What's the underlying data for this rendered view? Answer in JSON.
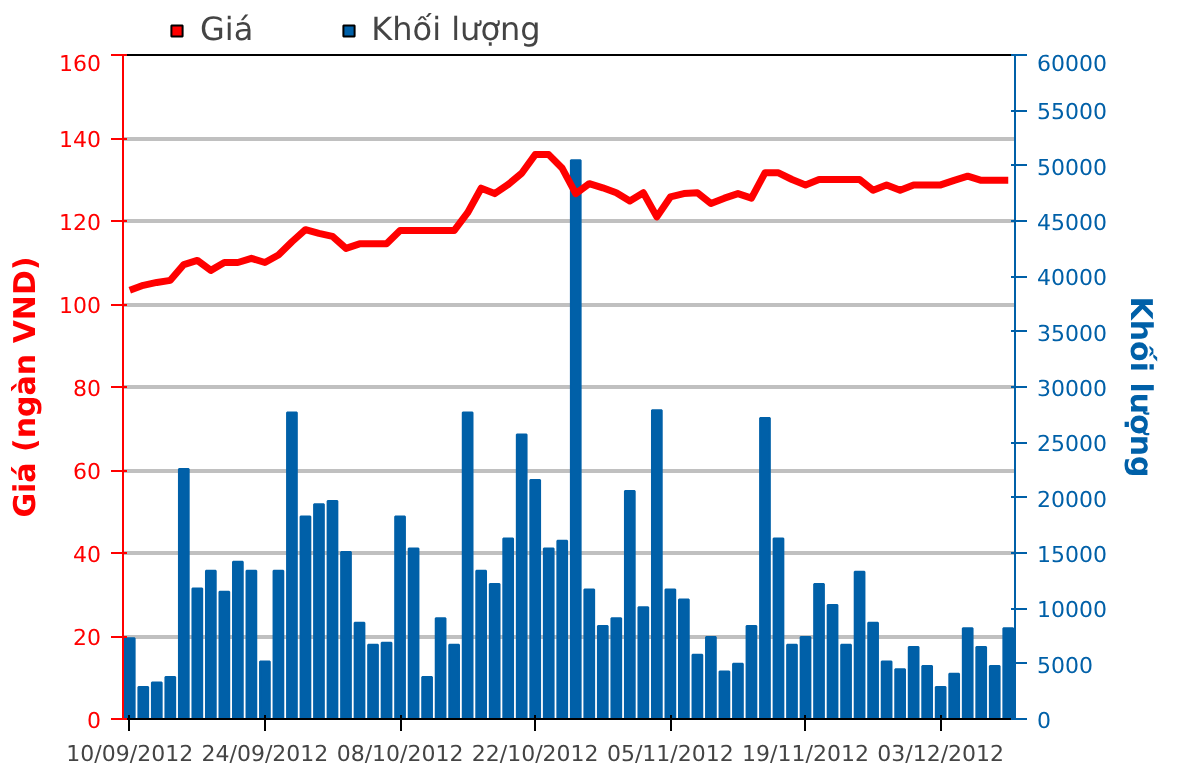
{
  "chart_data": {
    "type": "bar",
    "categories": [
      "10/09/2012",
      null,
      null,
      null,
      null,
      null,
      null,
      null,
      null,
      null,
      "24/09/2012",
      null,
      null,
      null,
      null,
      null,
      null,
      null,
      null,
      null,
      "08/10/2012",
      null,
      null,
      null,
      null,
      null,
      null,
      null,
      null,
      null,
      "22/10/2012",
      null,
      null,
      null,
      null,
      null,
      null,
      null,
      null,
      null,
      "05/11/2012",
      null,
      null,
      null,
      null,
      null,
      null,
      null,
      null,
      null,
      "19/11/2012",
      null,
      null,
      null,
      null,
      null,
      null,
      null,
      null,
      null,
      "03/12/2012",
      null,
      null,
      null,
      null,
      null
    ],
    "ylabel": "Giá (ngàn VND)",
    "y2label": "Khối lượng",
    "ylim": [
      0,
      160
    ],
    "yticks": [
      0,
      20,
      40,
      60,
      80,
      100,
      120,
      140,
      160
    ],
    "y2lim": [
      0,
      60000
    ],
    "y2ticks": [
      0,
      5000,
      10000,
      15000,
      20000,
      25000,
      30000,
      35000,
      40000,
      45000,
      50000,
      55000,
      60000
    ],
    "grid": "y",
    "legend": "top left",
    "marker": "none",
    "line_style": "solid",
    "series": [
      {
        "name": "Giá",
        "type": "line",
        "axis": "y",
        "color": "#ff0000",
        "values": [
          103.3,
          104.5,
          105.2,
          105.7,
          109.5,
          110.5,
          108.1,
          110,
          110,
          111,
          110,
          111.8,
          115,
          117.9,
          117,
          116.3,
          113.4,
          114.5,
          114.5,
          114.5,
          117.7,
          117.7,
          117.7,
          117.7,
          117.7,
          122,
          127.9,
          126.6,
          128.8,
          131.5,
          136,
          136,
          132.7,
          126.6,
          129,
          128,
          126.8,
          124.8,
          126.8,
          121,
          125.8,
          126.6,
          126.8,
          124.2,
          125.5,
          126.6,
          125.5,
          131.6,
          131.6,
          130,
          128.7,
          130,
          130,
          130,
          130,
          127.4,
          128.7,
          127.4,
          128.7,
          128.7,
          128.7,
          129.8,
          130.8,
          129.8,
          129.8,
          129.8
        ]
      },
      {
        "name": "Khối lượng",
        "axis": "y2",
        "color": "#0060a8",
        "values": [
          7300,
          2900,
          3300,
          3800,
          22600,
          11800,
          13400,
          11500,
          14200,
          13400,
          5200,
          13400,
          27700,
          18300,
          19400,
          19700,
          15100,
          8700,
          6700,
          6900,
          18300,
          15400,
          3800,
          9100,
          6700,
          27700,
          13400,
          12200,
          16300,
          25700,
          21600,
          15400,
          16100,
          50500,
          11700,
          8400,
          9100,
          20600,
          10100,
          27900,
          11700,
          10800,
          5800,
          7400,
          4300,
          5000,
          8400,
          27200,
          16300,
          6700,
          7400,
          12200,
          10300,
          6700,
          13300,
          8700,
          5200,
          4500,
          6500,
          4800,
          2900,
          4100,
          8200,
          6500,
          4800,
          8200
        ]
      }
    ]
  }
}
